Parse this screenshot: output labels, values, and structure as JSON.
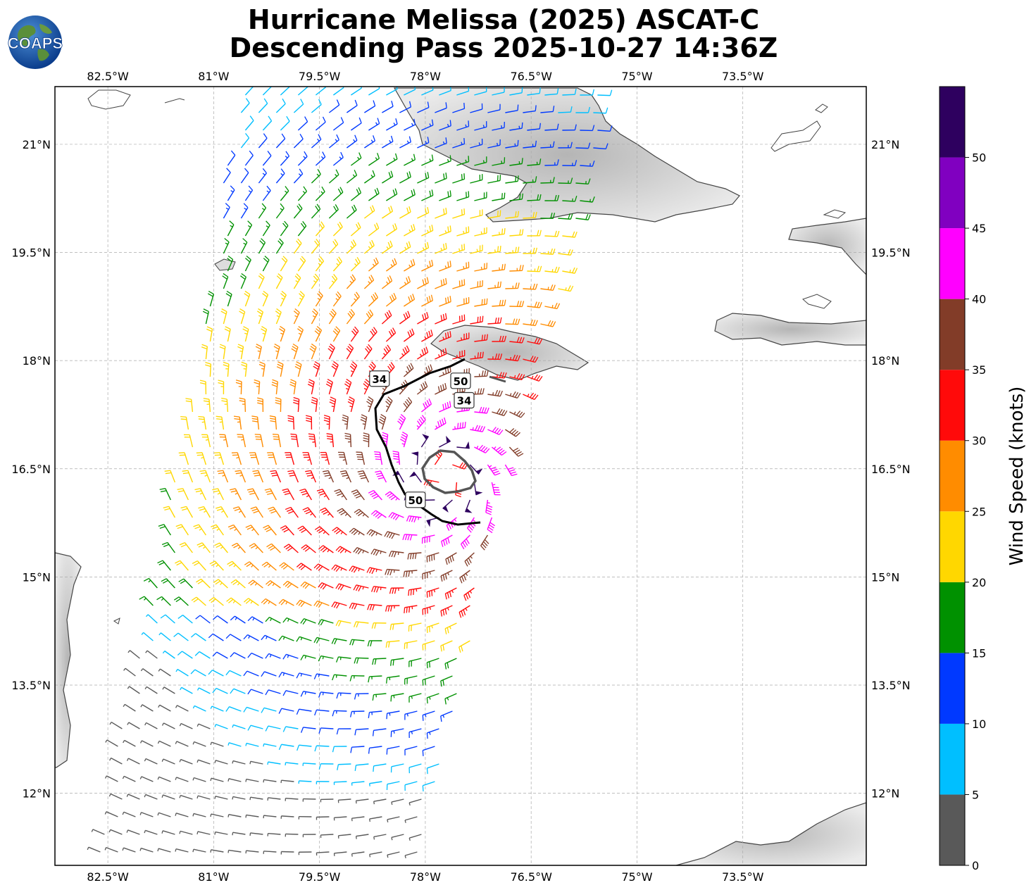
{
  "title": {
    "line1": "Hurricane Melissa (2025) ASCAT-C",
    "line2": "Descending Pass 2025-10-27 14:36Z"
  },
  "logo": {
    "text": "COAPS"
  },
  "map": {
    "lon_range": [
      -83.25,
      -71.75
    ],
    "lat_range": [
      11.0,
      21.8
    ],
    "lon_ticks": [
      {
        "value": -82.5,
        "label": "82.5°W"
      },
      {
        "value": -81.0,
        "label": "81°W"
      },
      {
        "value": -79.5,
        "label": "79.5°W"
      },
      {
        "value": -78.0,
        "label": "78°W"
      },
      {
        "value": -76.5,
        "label": "76.5°W"
      },
      {
        "value": -75.0,
        "label": "75°W"
      },
      {
        "value": -73.5,
        "label": "73.5°W"
      }
    ],
    "lat_ticks": [
      {
        "value": 21.0,
        "label": "21°N"
      },
      {
        "value": 19.5,
        "label": "19.5°N"
      },
      {
        "value": 18.0,
        "label": "18°N"
      },
      {
        "value": 16.5,
        "label": "16.5°N"
      },
      {
        "value": 15.0,
        "label": "15°N"
      },
      {
        "value": 13.5,
        "label": "13.5°N"
      },
      {
        "value": 12.0,
        "label": "12°N"
      }
    ],
    "gridlines": true,
    "storm_center": {
      "lon": -77.75,
      "lat": 16.4
    },
    "contours": [
      {
        "level": "34",
        "label_positions": [
          {
            "lon": -78.65,
            "lat": 17.75
          },
          {
            "lon": -77.45,
            "lat": 17.45
          }
        ]
      },
      {
        "level": "50",
        "label_positions": [
          {
            "lon": -78.14,
            "lat": 16.07
          },
          {
            "lon": -77.5,
            "lat": 17.72
          }
        ]
      }
    ]
  },
  "colorbar": {
    "title": "Wind Speed (knots)",
    "bins": [
      {
        "min": 0,
        "max": 5,
        "color": "#595959"
      },
      {
        "min": 5,
        "max": 10,
        "color": "#00bfff"
      },
      {
        "min": 10,
        "max": 15,
        "color": "#0039ff"
      },
      {
        "min": 15,
        "max": 20,
        "color": "#009100"
      },
      {
        "min": 20,
        "max": 25,
        "color": "#ffd700"
      },
      {
        "min": 25,
        "max": 30,
        "color": "#ff8c00"
      },
      {
        "min": 30,
        "max": 35,
        "color": "#ff0a0a"
      },
      {
        "min": 35,
        "max": 40,
        "color": "#823c28"
      },
      {
        "min": 40,
        "max": 45,
        "color": "#ff00ff"
      },
      {
        "min": 45,
        "max": 50,
        "color": "#8000c0"
      },
      {
        "min": 50,
        "max": 55,
        "color": "#2e005f"
      }
    ],
    "tick_labels": [
      "0",
      "5",
      "10",
      "15",
      "20",
      "25",
      "30",
      "35",
      "40",
      "45",
      "50"
    ]
  }
}
